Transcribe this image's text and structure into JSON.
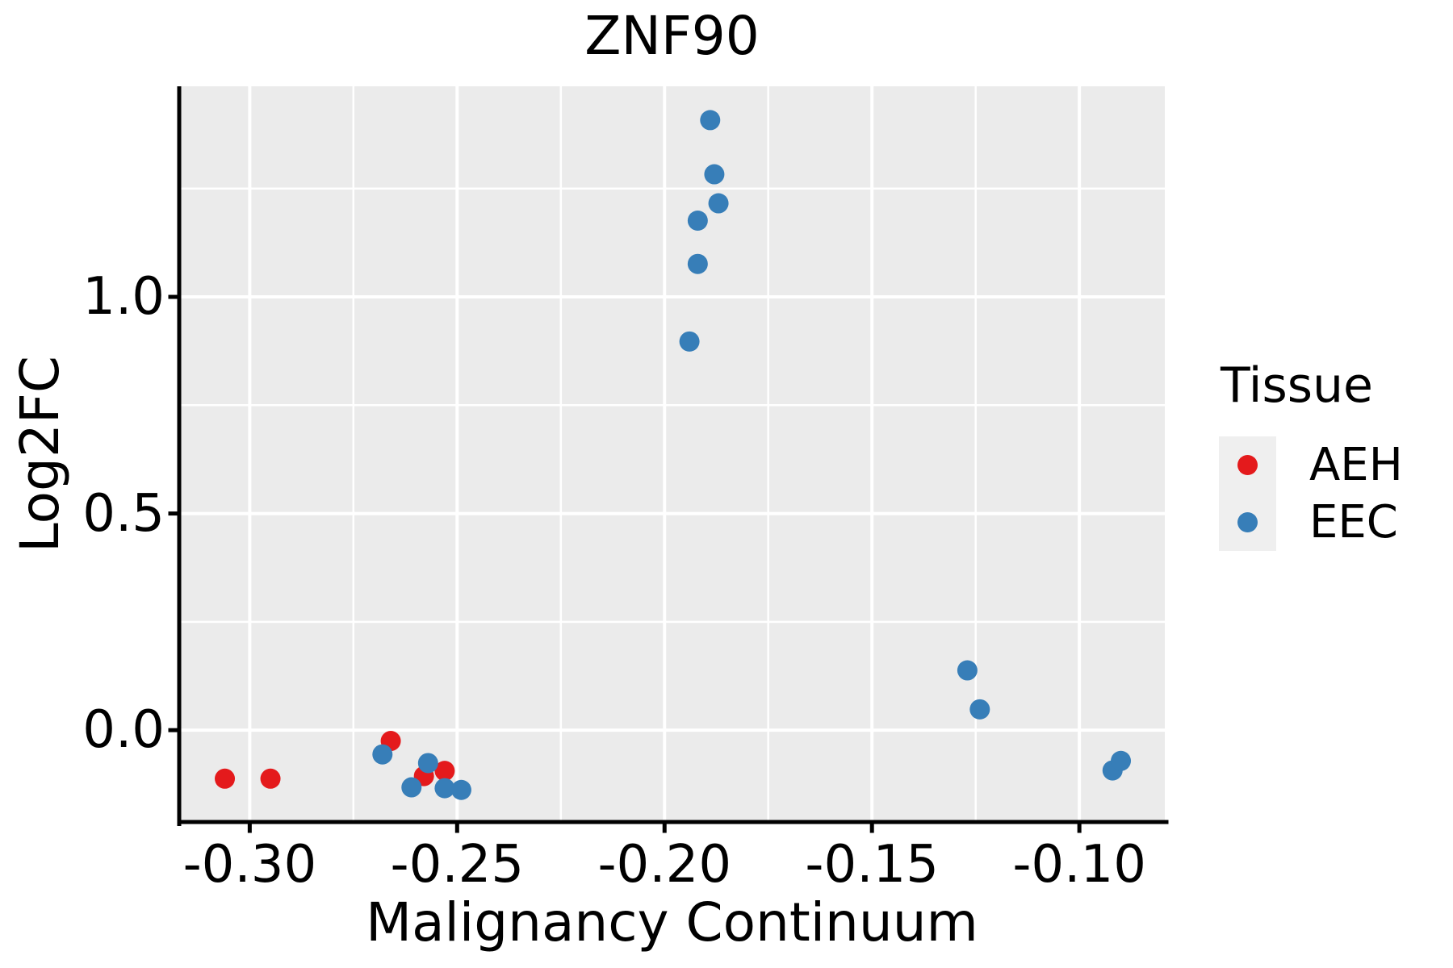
{
  "chart_data": {
    "type": "scatter",
    "title": "ZNF90",
    "xlabel": "Malignancy Continuum",
    "ylabel": "Log2FC",
    "grid": true,
    "x_axis": {
      "range": [
        -0.317,
        -0.0794
      ],
      "ticks": [
        -0.3,
        -0.25,
        -0.2,
        -0.15,
        -0.1
      ],
      "tick_labels": [
        "-0.30",
        "-0.25",
        "-0.20",
        "-0.15",
        "-0.10"
      ],
      "minor_ticks": [
        -0.275,
        -0.225,
        -0.175,
        -0.125
      ]
    },
    "y_axis": {
      "range": [
        -0.212,
        1.486
      ],
      "ticks": [
        0.0,
        0.5,
        1.0
      ],
      "tick_labels": [
        "0.0",
        "0.5",
        "1.0"
      ],
      "minor_ticks": [
        0.25,
        0.75,
        1.25
      ]
    },
    "legend": {
      "title": "Tissue",
      "position": "right",
      "entries": [
        "AEH",
        "EEC"
      ]
    },
    "series": [
      {
        "name": "AEH",
        "color": "#E41A1C",
        "points": [
          [
            -0.306,
            -0.112
          ],
          [
            -0.295,
            -0.112
          ],
          [
            -0.266,
            -0.025
          ],
          [
            -0.258,
            -0.106
          ],
          [
            -0.253,
            -0.094
          ]
        ]
      },
      {
        "name": "EEC",
        "color": "#377EB8",
        "points": [
          [
            -0.268,
            -0.056
          ],
          [
            -0.257,
            -0.076
          ],
          [
            -0.261,
            -0.132
          ],
          [
            -0.253,
            -0.134
          ],
          [
            -0.249,
            -0.138
          ],
          [
            -0.194,
            0.897
          ],
          [
            -0.192,
            1.076
          ],
          [
            -0.192,
            1.176
          ],
          [
            -0.189,
            1.408
          ],
          [
            -0.188,
            1.283
          ],
          [
            -0.187,
            1.216
          ],
          [
            -0.127,
            0.138
          ],
          [
            -0.124,
            0.048
          ],
          [
            -0.092,
            -0.093
          ],
          [
            -0.09,
            -0.071
          ]
        ]
      }
    ],
    "styles": {
      "panel_bg": "#EBEBEB",
      "grid_color": "#FFFFFF",
      "axis_color": "#000000",
      "text_color": "#000000",
      "legend_key_bg": "#EFEFEF",
      "point_radius_px": 12.5
    }
  }
}
